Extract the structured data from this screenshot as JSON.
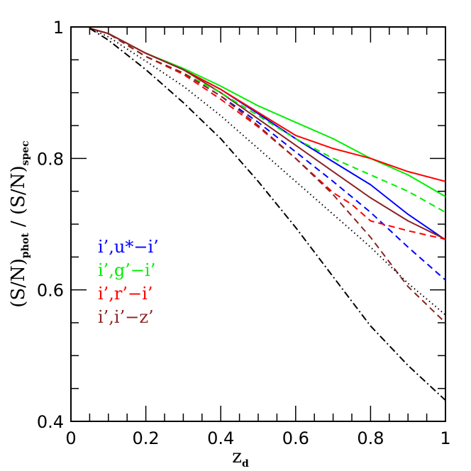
{
  "chart_data": {
    "type": "line",
    "xlabel": "z",
    "xlabel_sub": "d",
    "ylabel_parts": [
      "(S/N)",
      "phot",
      " / (S/N)",
      "spec"
    ],
    "xlim": [
      0,
      1
    ],
    "ylim": [
      0.4,
      1
    ],
    "x_ticks": [
      0,
      0.2,
      0.4,
      0.6,
      0.8,
      1
    ],
    "x_tick_labels": [
      "0",
      "0.2",
      "0.4",
      "0.6",
      "0.8",
      "1"
    ],
    "y_ticks": [
      0.4,
      0.6,
      0.8,
      1
    ],
    "y_tick_labels": [
      "0.4",
      "0.6",
      "0.8",
      "1"
    ],
    "grid": false,
    "legend_position": "middle-left",
    "legend": [
      {
        "text": "i’,u*−i’",
        "color": "#0000ff"
      },
      {
        "text": "i’,g’−i’",
        "color": "#00ee00"
      },
      {
        "text": "i’,r’−i’",
        "color": "#ff0000"
      },
      {
        "text": "i’,i’−z’",
        "color": "#8b2323"
      }
    ],
    "series": [
      {
        "color": "#0000ff",
        "style": "solid",
        "x": [
          0.05,
          0.1,
          0.2,
          0.3,
          0.4,
          0.5,
          0.6,
          0.7,
          0.8,
          0.9,
          1.0
        ],
        "y": [
          0.998,
          0.99,
          0.96,
          0.935,
          0.905,
          0.868,
          0.83,
          0.795,
          0.76,
          0.715,
          0.676
        ]
      },
      {
        "color": "#00ee00",
        "style": "solid",
        "x": [
          0.05,
          0.1,
          0.2,
          0.3,
          0.4,
          0.5,
          0.6,
          0.7,
          0.8,
          0.9,
          1.0
        ],
        "y": [
          0.998,
          0.99,
          0.96,
          0.937,
          0.91,
          0.88,
          0.855,
          0.83,
          0.8,
          0.775,
          0.742
        ]
      },
      {
        "color": "#ff0000",
        "style": "solid",
        "x": [
          0.05,
          0.1,
          0.2,
          0.3,
          0.4,
          0.5,
          0.6,
          0.7,
          0.8,
          0.9,
          1.0
        ],
        "y": [
          0.998,
          0.99,
          0.96,
          0.935,
          0.905,
          0.87,
          0.835,
          0.815,
          0.8,
          0.78,
          0.765
        ]
      },
      {
        "color": "#8b2323",
        "style": "solid",
        "x": [
          0.05,
          0.1,
          0.2,
          0.3,
          0.4,
          0.5,
          0.6,
          0.7,
          0.8,
          0.9,
          1.0
        ],
        "y": [
          0.998,
          0.99,
          0.96,
          0.935,
          0.9,
          0.86,
          0.82,
          0.78,
          0.74,
          0.705,
          0.677
        ]
      },
      {
        "color": "#0000ff",
        "style": "dashed",
        "x": [
          0.05,
          0.1,
          0.2,
          0.3,
          0.4,
          0.5,
          0.6,
          0.7,
          0.8,
          0.9,
          1.0
        ],
        "y": [
          0.998,
          0.99,
          0.955,
          0.93,
          0.895,
          0.855,
          0.81,
          0.765,
          0.718,
          0.665,
          0.615
        ]
      },
      {
        "color": "#00ee00",
        "style": "dashed",
        "x": [
          0.05,
          0.1,
          0.2,
          0.3,
          0.4,
          0.5,
          0.6,
          0.7,
          0.8,
          0.9,
          1.0
        ],
        "y": [
          0.998,
          0.99,
          0.955,
          0.93,
          0.9,
          0.865,
          0.83,
          0.8,
          0.775,
          0.75,
          0.718
        ]
      },
      {
        "color": "#ff0000",
        "style": "dashed",
        "x": [
          0.05,
          0.1,
          0.2,
          0.3,
          0.4,
          0.5,
          0.6,
          0.7,
          0.75,
          0.8,
          0.9,
          1.0
        ],
        "y": [
          0.998,
          0.99,
          0.955,
          0.928,
          0.89,
          0.848,
          0.8,
          0.748,
          0.73,
          0.705,
          0.69,
          0.677
        ]
      },
      {
        "color": "#8b2323",
        "style": "dashed",
        "x": [
          0.05,
          0.1,
          0.2,
          0.3,
          0.4,
          0.5,
          0.6,
          0.7,
          0.8,
          0.9,
          1.0
        ],
        "y": [
          0.998,
          0.99,
          0.955,
          0.93,
          0.895,
          0.85,
          0.8,
          0.745,
          0.68,
          0.605,
          0.55
        ]
      },
      {
        "color": "#000000",
        "style": "dotted",
        "x": [
          0.05,
          0.1,
          0.2,
          0.3,
          0.4,
          0.5,
          0.6,
          0.7,
          0.8,
          0.9,
          1.0
        ],
        "y": [
          0.998,
          0.985,
          0.948,
          0.91,
          0.865,
          0.815,
          0.765,
          0.715,
          0.665,
          0.61,
          0.562
        ]
      },
      {
        "color": "#000000",
        "style": "dashdot",
        "x": [
          0.05,
          0.1,
          0.2,
          0.3,
          0.4,
          0.5,
          0.6,
          0.7,
          0.8,
          0.9,
          1.0
        ],
        "y": [
          0.998,
          0.98,
          0.935,
          0.885,
          0.83,
          0.765,
          0.695,
          0.62,
          0.545,
          0.485,
          0.432
        ]
      }
    ]
  }
}
